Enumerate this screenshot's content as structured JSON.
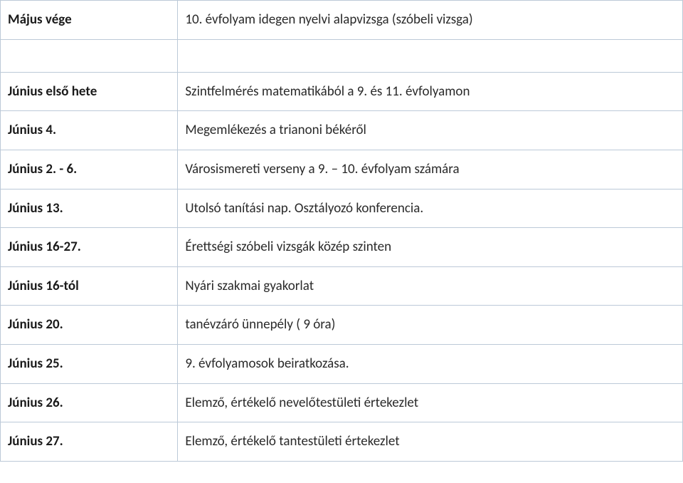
{
  "table": {
    "border_color": "#bcc9d8",
    "background_color": "#ffffff",
    "left_font_weight": 700,
    "right_font_weight": 400,
    "font_size_pt": 14,
    "rows": [
      {
        "left": "Május vége",
        "right": "10. évfolyam idegen nyelvi alapvizsga (szóbeli vizsga)"
      },
      {
        "spacer": true
      },
      {
        "left": "Június első hete",
        "right": "Szintfelmérés matematikából a 9. és 11. évfolyamon"
      },
      {
        "left": "Június 4.",
        "right": "Megemlékezés a trianoni békéről"
      },
      {
        "left": "Június 2. - 6.",
        "right": "Városismereti verseny a 9. – 10. évfolyam számára"
      },
      {
        "left": "Június 13.",
        "right": "Utolsó tanítási nap. Osztályozó konferencia."
      },
      {
        "left": "Június 16-27.",
        "right": "Érettségi szóbeli vizsgák közép szinten"
      },
      {
        "left": "Június 16-tól",
        "right": "Nyári szakmai gyakorlat"
      },
      {
        "left": "Június 20.",
        "right": "tanévzáró ünnepély ( 9 óra)"
      },
      {
        "left": "Június 25.",
        "right": "9. évfolyamosok beiratkozása."
      },
      {
        "left": "Június 26.",
        "right": "Elemző, értékelő nevelőtestületi értekezlet"
      },
      {
        "left": "Június 27.",
        "right": "Elemző, értékelő tantestületi értekezlet"
      }
    ]
  }
}
